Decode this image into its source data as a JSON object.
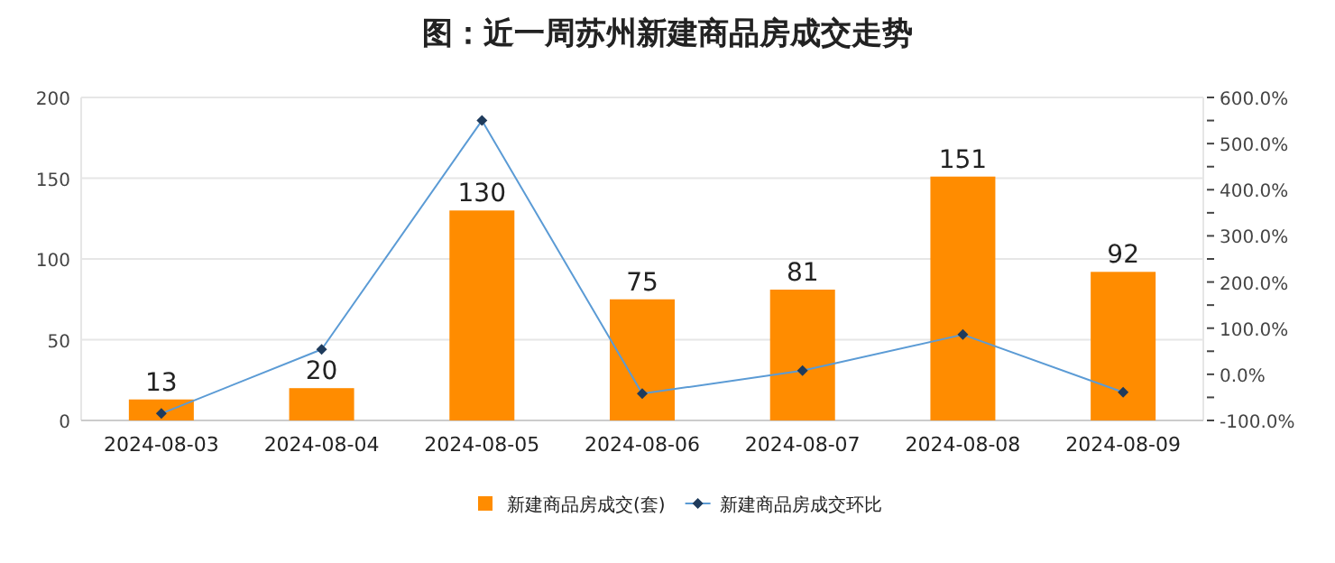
{
  "chart_data": {
    "type": "bar",
    "title": "图：近一周苏州新建商品房成交走势",
    "categories": [
      "2024-08-03",
      "2024-08-04",
      "2024-08-05",
      "2024-08-06",
      "2024-08-07",
      "2024-08-08",
      "2024-08-09"
    ],
    "series": [
      {
        "name": "新建商品房成交(套)",
        "color": "#ff8c00",
        "values": [
          13,
          20,
          130,
          75,
          81,
          151,
          92
        ],
        "value_labels": [
          "13",
          "20",
          "130",
          "75",
          "81",
          "151",
          "92"
        ]
      },
      {
        "name": "新建商品房成交环比",
        "type": "line",
        "axis": "y2",
        "color": "#5b9bd5",
        "marker": "diamond",
        "values": [
          -85,
          54,
          550,
          -42,
          8,
          86,
          -39
        ]
      }
    ],
    "ylim": [
      0,
      200
    ],
    "yticks": [
      0,
      50,
      100,
      150,
      200
    ],
    "y2lim": [
      -100,
      600
    ],
    "y2ticks": [
      {
        "value": -100,
        "label": "-100.0%"
      },
      {
        "value": -50,
        "label": null
      },
      {
        "value": 0,
        "label": "0.0%"
      },
      {
        "value": 50,
        "label": null
      },
      {
        "value": 100,
        "label": "100.0%"
      },
      {
        "value": 150,
        "label": null
      },
      {
        "value": 200,
        "label": "200.0%"
      },
      {
        "value": 250,
        "label": null
      },
      {
        "value": 300,
        "label": "300.0%"
      },
      {
        "value": 350,
        "label": null
      },
      {
        "value": 400,
        "label": "400.0%"
      },
      {
        "value": 450,
        "label": null
      },
      {
        "value": 500,
        "label": "500.0%"
      },
      {
        "value": 550,
        "label": null
      },
      {
        "value": 600,
        "label": "600.0%"
      }
    ],
    "grid": "y",
    "legend": "bottom"
  }
}
